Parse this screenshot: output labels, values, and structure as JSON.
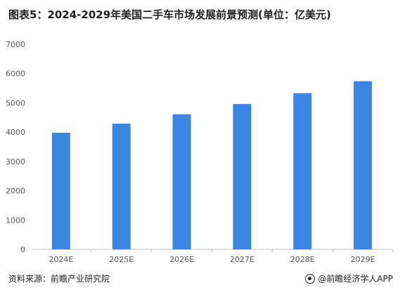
{
  "title": "图表5：2024-2029年美国二手车市场发展前景预测(单位：亿美元)",
  "footer": {
    "source": "资料来源：前瞻产业研究院",
    "brand": "@前瞻经济学人APP"
  },
  "colors": {
    "bar": "#3b86e3",
    "axis": "#bdbdbd",
    "text": "#555555"
  },
  "chart_data": {
    "type": "bar",
    "title": "图表5：2024-2029年美国二手车市场发展前景预测(单位：亿美元)",
    "categories": [
      "2024E",
      "2025E",
      "2026E",
      "2027E",
      "2028E",
      "2029E"
    ],
    "values": [
      3980,
      4290,
      4610,
      4960,
      5330,
      5740
    ],
    "xlabel": "",
    "ylabel": "",
    "ylim": [
      0,
      7000
    ],
    "yticks": [
      0,
      1000,
      2000,
      3000,
      4000,
      5000,
      6000,
      7000
    ],
    "grid": false,
    "legend": "none"
  }
}
